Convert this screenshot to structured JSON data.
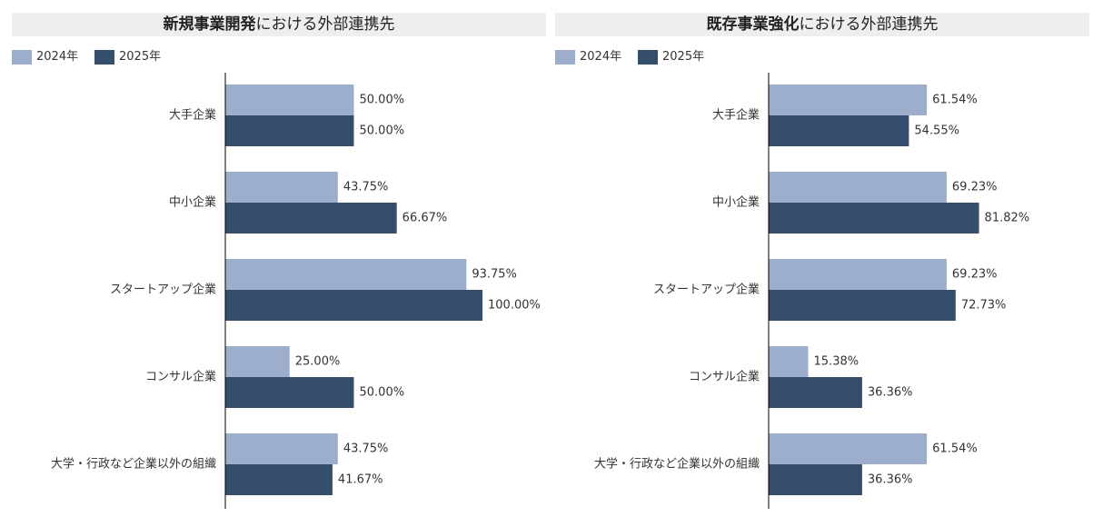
{
  "chart_data": [
    {
      "type": "bar",
      "orientation": "horizontal",
      "title_bold": "新規事業開発",
      "title_rest": "における外部連携先",
      "categories": [
        "大手企業",
        "中小企業",
        "スタートアップ企業",
        "コンサル企業",
        "大学・行政など企業以外の組織"
      ],
      "series": [
        {
          "name": "2024年",
          "values": [
            50.0,
            43.75,
            93.75,
            25.0,
            43.75
          ],
          "labels": [
            "50.00%",
            "43.75%",
            "93.75%",
            "25.00%",
            "43.75%"
          ]
        },
        {
          "name": "2025年",
          "values": [
            50.0,
            66.67,
            100.0,
            50.0,
            41.67
          ],
          "labels": [
            "50.00%",
            "66.67%",
            "100.00%",
            "50.00%",
            "41.67%"
          ]
        }
      ],
      "xlim": [
        0,
        100
      ],
      "grid": false,
      "legend_position": "top-left"
    },
    {
      "type": "bar",
      "orientation": "horizontal",
      "title_bold": "既存事業強化",
      "title_rest": "における外部連携先",
      "categories": [
        "大手企業",
        "中小企業",
        "スタートアップ企業",
        "コンサル企業",
        "大学・行政など企業以外の組織"
      ],
      "series": [
        {
          "name": "2024年",
          "values": [
            61.54,
            69.23,
            69.23,
            15.38,
            61.54
          ],
          "labels": [
            "61.54%",
            "69.23%",
            "69.23%",
            "15.38%",
            "61.54%"
          ]
        },
        {
          "name": "2025年",
          "values": [
            54.55,
            81.82,
            72.73,
            36.36,
            36.36
          ],
          "labels": [
            "54.55%",
            "81.82%",
            "72.73%",
            "36.36%",
            "36.36%"
          ]
        }
      ],
      "xlim": [
        0,
        100
      ],
      "grid": false,
      "legend_position": "top-left"
    }
  ],
  "colors": {
    "series_2024": "#9daecd",
    "series_2025": "#364e6e",
    "axis": "#000000",
    "title_bg": "#eeeeee"
  }
}
